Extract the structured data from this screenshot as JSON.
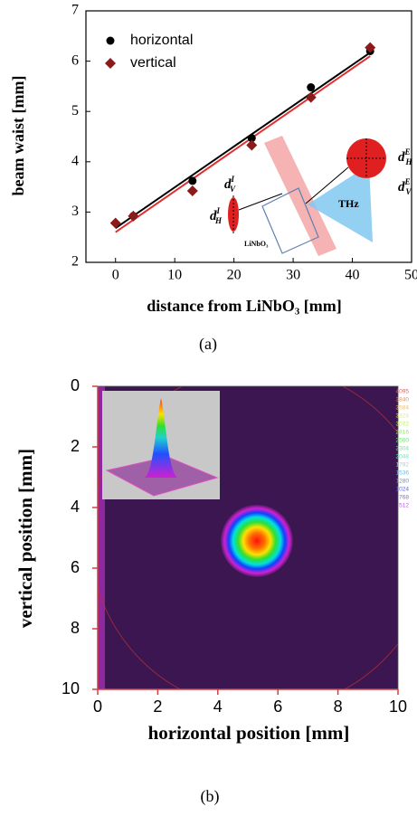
{
  "chart_data": [
    {
      "type": "scatter",
      "xlabel": "distance from LiNbO₃ [mm]",
      "ylabel": "beam waist [mm]",
      "caption": "(a)",
      "xlim": [
        -5,
        50
      ],
      "ylim": [
        2,
        7
      ],
      "xticks": [
        0,
        10,
        20,
        30,
        40,
        50
      ],
      "yticks": [
        2,
        3,
        4,
        5,
        6,
        7
      ],
      "legend": "upper left",
      "series": [
        {
          "name": "horizontal",
          "color": "#000000",
          "marker": "circle",
          "x": [
            3,
            13,
            23,
            33,
            43
          ],
          "values": [
            2.92,
            3.62,
            4.47,
            5.48,
            6.2
          ]
        },
        {
          "name": "vertical",
          "color": "#8b1a1a",
          "marker": "diamond",
          "x": [
            0,
            3,
            13,
            23,
            33,
            43
          ],
          "values": [
            2.78,
            2.92,
            3.42,
            4.33,
            5.28,
            6.27
          ]
        }
      ],
      "fits": [
        {
          "color": "#000000",
          "x": [
            0,
            43
          ],
          "values": [
            2.68,
            6.17
          ]
        },
        {
          "color": "#e03030",
          "x": [
            0,
            43
          ],
          "values": [
            2.6,
            6.1
          ]
        }
      ],
      "inset_labels": [
        {
          "text": "d",
          "sup": "I",
          "sub": "V"
        },
        {
          "text": "d",
          "sup": "I",
          "sub": "H"
        },
        {
          "text": "d",
          "sup": "E",
          "sub": "H"
        },
        {
          "text": "d",
          "sup": "E",
          "sub": "V"
        },
        {
          "text": "THz"
        },
        {
          "text": "LiNbO₃"
        }
      ]
    },
    {
      "type": "heatmap",
      "xlabel": "horizontal position [mm]",
      "ylabel": "vertical position [mm]",
      "caption": "(b)",
      "xlim": [
        0,
        10
      ],
      "ylim": [
        0,
        10
      ],
      "y_inverted": true,
      "xticks": [
        0,
        2,
        4,
        6,
        8,
        10
      ],
      "yticks": [
        0,
        2,
        4,
        6,
        8,
        10
      ],
      "spot": {
        "x": 5.3,
        "y": 5.1,
        "radius": 1.2
      },
      "colorbar_ticks": [
        4095,
        3840,
        3584,
        3328,
        3072,
        2816,
        2560,
        2304,
        2048,
        1792,
        1536,
        1280,
        1024,
        768,
        512
      ]
    }
  ]
}
